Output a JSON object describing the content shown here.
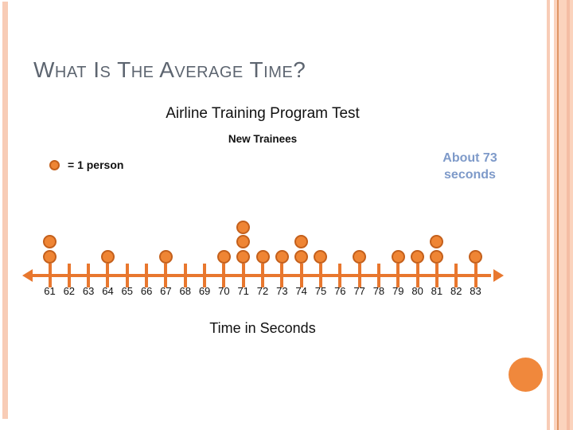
{
  "slide": {
    "title": "What Is The Average Time?",
    "subtitle": "Airline Training Program Test",
    "subsubtitle": "New Trainees",
    "legend_label": "= 1 person",
    "annotation_line1": "About 73",
    "annotation_line2": "seconds",
    "xlabel": "Time in Seconds"
  },
  "colors": {
    "accent_orange": "#e8772e",
    "dot_fill": "#ef8534",
    "dot_ring": "#c4601c",
    "title_gray": "#5d6570",
    "annotation_blue": "#7e9ac9",
    "circle_orange": "#f0883c",
    "border_peach_light": "#f8ccb6",
    "border_peach_soft": "#fbd3bd",
    "border_peach_mid": "#f4bda4",
    "border_peach_line": "#df9565"
  },
  "chart_data": {
    "type": "scatter",
    "subtype": "dot-plot",
    "title": "Airline Training Program Test",
    "subtitle": "New Trainees",
    "xlabel": "Time in Seconds",
    "legend": "= 1 person (each dot)",
    "annotation": "About 73 seconds",
    "categories": [
      "61",
      "62",
      "63",
      "64",
      "65",
      "66",
      "67",
      "68",
      "69",
      "70",
      "71",
      "72",
      "73",
      "74",
      "75",
      "76",
      "77",
      "78",
      "79",
      "80",
      "81",
      "82",
      "83"
    ],
    "values": [
      2,
      0,
      0,
      1,
      0,
      0,
      1,
      0,
      0,
      1,
      3,
      1,
      1,
      2,
      1,
      0,
      1,
      0,
      1,
      1,
      2,
      0,
      1
    ],
    "total_people": 19,
    "x_range": [
      61,
      83
    ],
    "axis": "horizontal number line with arrowheads on both ends"
  }
}
